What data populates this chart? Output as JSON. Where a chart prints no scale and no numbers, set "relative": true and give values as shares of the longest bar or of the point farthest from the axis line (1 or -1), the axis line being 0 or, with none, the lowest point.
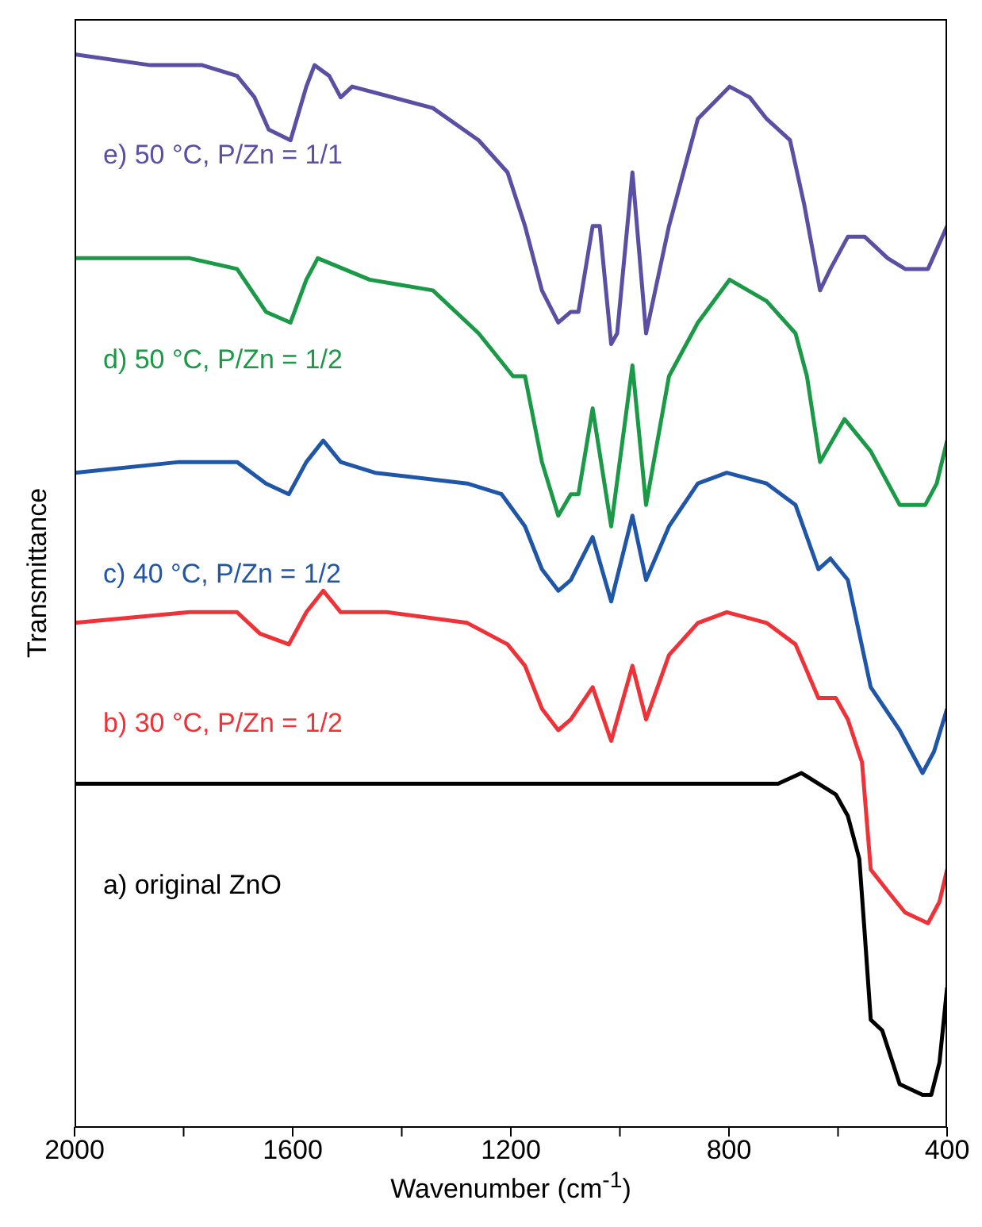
{
  "chart_data": {
    "type": "line",
    "relative": true,
    "xlabel": "Wavenumber (cm$^{-1}$)",
    "ylabel": "Transmittance",
    "xlim": [
      2000,
      400
    ],
    "xticks": [
      2000,
      {
        "value": 1800,
        "label": null
      },
      1600,
      {
        "value": 1400,
        "label": null
      },
      1200,
      {
        "value": 1000,
        "label": null
      },
      800,
      {
        "value": 600,
        "label": null
      },
      400
    ],
    "legend": false,
    "grid": false,
    "marker": "none",
    "line_style": "solid",
    "series": [
      {
        "name": "e) 50 °C, P/Zn = 1/1",
        "color": "#5a4fa3",
        "x": [
          2000,
          1861,
          1766,
          1702,
          1670,
          1644,
          1604,
          1575,
          1560,
          1533,
          1512,
          1491,
          1343,
          1259,
          1206,
          1174,
          1143,
          1113,
          1090,
          1076,
          1050,
          1037,
          1016,
          1005,
          977,
          952,
          910,
          857,
          799,
          762,
          731,
          688,
          662,
          633,
          614,
          582,
          551,
          509,
          477,
          435,
          400
        ],
        "values": [
          1.0,
          0.99,
          0.99,
          0.98,
          0.96,
          0.93,
          0.92,
          0.97,
          0.99,
          0.98,
          0.96,
          0.97,
          0.95,
          0.92,
          0.89,
          0.84,
          0.78,
          0.75,
          0.76,
          0.76,
          0.84,
          0.84,
          0.73,
          0.74,
          0.89,
          0.74,
          0.84,
          0.94,
          0.97,
          0.96,
          0.94,
          0.92,
          0.86,
          0.78,
          0.8,
          0.83,
          0.83,
          0.81,
          0.8,
          0.8,
          0.84
        ]
      },
      {
        "name": "d) 50 °C, P/Zn = 1/2",
        "color": "#1a9a46",
        "x": [
          2000,
          1789,
          1702,
          1649,
          1604,
          1575,
          1554,
          1459,
          1343,
          1259,
          1196,
          1174,
          1143,
          1113,
          1090,
          1076,
          1050,
          1016,
          977,
          952,
          910,
          857,
          799,
          731,
          678,
          657,
          633,
          588,
          540,
          487,
          440,
          419,
          400
        ],
        "values": [
          0.81,
          0.81,
          0.8,
          0.76,
          0.75,
          0.79,
          0.81,
          0.79,
          0.78,
          0.74,
          0.7,
          0.7,
          0.62,
          0.57,
          0.59,
          0.59,
          0.67,
          0.56,
          0.71,
          0.58,
          0.7,
          0.75,
          0.79,
          0.77,
          0.74,
          0.7,
          0.62,
          0.66,
          0.63,
          0.58,
          0.58,
          0.6,
          0.64
        ]
      },
      {
        "name": "c) 40 °C, P/Zn = 1/2",
        "color": "#1f56a8",
        "x": [
          2000,
          1808,
          1702,
          1649,
          1607,
          1575,
          1544,
          1512,
          1449,
          1280,
          1217,
          1174,
          1143,
          1113,
          1090,
          1050,
          1016,
          977,
          952,
          910,
          857,
          804,
          731,
          678,
          636,
          614,
          582,
          540,
          487,
          445,
          424,
          400
        ],
        "values": [
          0.61,
          0.62,
          0.62,
          0.6,
          0.59,
          0.62,
          0.64,
          0.62,
          0.61,
          0.6,
          0.59,
          0.56,
          0.52,
          0.5,
          0.51,
          0.55,
          0.49,
          0.57,
          0.51,
          0.56,
          0.6,
          0.61,
          0.6,
          0.58,
          0.52,
          0.53,
          0.51,
          0.41,
          0.37,
          0.33,
          0.35,
          0.39
        ]
      },
      {
        "name": "b) 30 °C, P/Zn = 1/2",
        "color": "#ee3237",
        "x": [
          2000,
          1789,
          1702,
          1660,
          1607,
          1575,
          1544,
          1512,
          1428,
          1280,
          1206,
          1174,
          1143,
          1113,
          1090,
          1050,
          1016,
          977,
          952,
          910,
          857,
          804,
          731,
          678,
          636,
          604,
          582,
          556,
          540,
          509,
          477,
          435,
          414,
          400
        ],
        "values": [
          0.47,
          0.48,
          0.48,
          0.46,
          0.45,
          0.48,
          0.5,
          0.48,
          0.48,
          0.47,
          0.45,
          0.43,
          0.39,
          0.37,
          0.38,
          0.41,
          0.36,
          0.43,
          0.38,
          0.44,
          0.47,
          0.48,
          0.47,
          0.45,
          0.4,
          0.4,
          0.38,
          0.34,
          0.24,
          0.22,
          0.2,
          0.19,
          0.21,
          0.24
        ]
      },
      {
        "name": "a) original ZnO",
        "color": "#000000",
        "x": [
          2000,
          1649,
          1491,
          1174,
          1037,
          963,
          804,
          710,
          667,
          604,
          582,
          561,
          551,
          540,
          519,
          487,
          445,
          429,
          414,
          400
        ],
        "values": [
          0.32,
          0.32,
          0.32,
          0.32,
          0.32,
          0.32,
          0.32,
          0.32,
          0.33,
          0.31,
          0.29,
          0.25,
          0.18,
          0.1,
          0.09,
          0.04,
          0.03,
          0.03,
          0.06,
          0.13
        ]
      }
    ]
  }
}
